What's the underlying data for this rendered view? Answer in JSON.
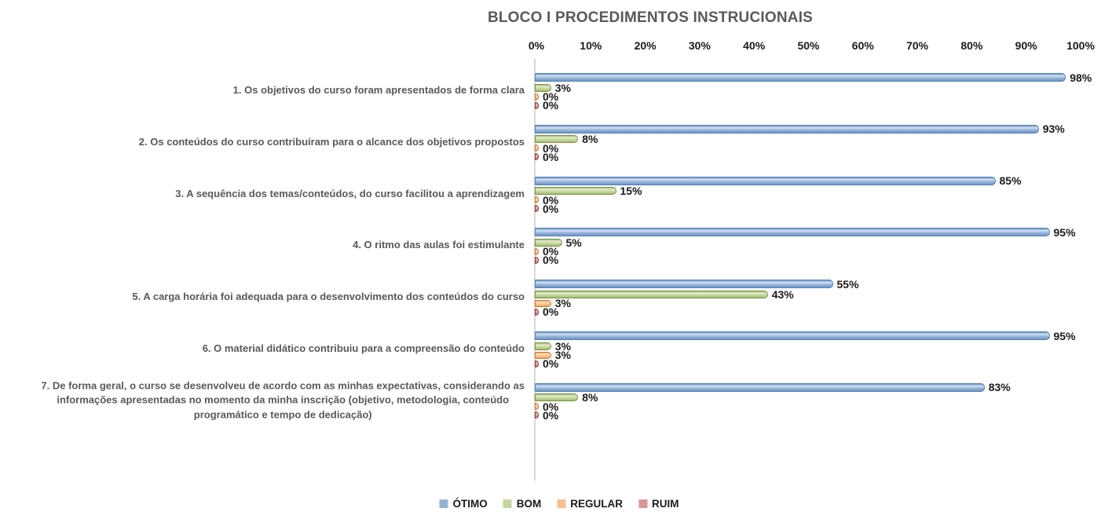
{
  "title": "BLOCO I PROCEDIMENTOS INSTRUCIONAIS",
  "colors": {
    "title_text": "#595959",
    "category_text": "#595959",
    "data_label_text": "#1a1a1a",
    "tick_text": "#1a1a1a",
    "axis_line": "#d9d9d9"
  },
  "chart_data": {
    "type": "bar",
    "orientation": "horizontal",
    "grid": false,
    "legend_position": "bottom",
    "data_label_format": "{value}%",
    "x_axis": {
      "min": 0,
      "max": 100,
      "ticks": [
        "0%",
        "10%",
        "20%",
        "30%",
        "40%",
        "50%",
        "60%",
        "70%",
        "80%",
        "90%",
        "100%"
      ]
    },
    "categories": [
      "1. Os objetivos do curso foram apresentados de forma clara",
      "2. Os conteúdos do curso contribuíram para o alcance dos objetivos propostos",
      "3. A sequência dos temas/conteúdos, do curso facilitou a aprendizagem",
      "4. O ritmo das aulas foi estimulante",
      "5. A carga horária foi adequada para o desenvolvimento dos conteúdos do curso",
      "6. O material didático contribuiu para a compreensão do conteúdo",
      "7. De forma geral, o curso se desenvolveu de acordo com as minhas expectativas, considerando as\ninformações apresentadas no momento da minha inscrição (objetivo, metodologia, conteúdo\nprogramático e tempo de dedicação)"
    ],
    "series": [
      {
        "name": "ÓTIMO",
        "key": "otimo",
        "values": [
          98,
          93,
          85,
          95,
          55,
          95,
          83
        ],
        "fill": "#95B3D7",
        "fill_light": "#D2E1F2",
        "fill_dark": "#7295C5",
        "border": "#4F81BD"
      },
      {
        "name": "BOM",
        "key": "bom",
        "values": [
          3,
          8,
          15,
          5,
          43,
          3,
          8
        ],
        "fill": "#C3D69B",
        "fill_light": "#E3ECCF",
        "fill_dark": "#A8BE77",
        "border": "#77933C"
      },
      {
        "name": "REGULAR",
        "key": "regular",
        "values": [
          0,
          0,
          0,
          0,
          3,
          3,
          0
        ],
        "fill": "#FAC090",
        "fill_light": "#FDDFC2",
        "fill_dark": "#EFA963",
        "border": "#D4772F"
      },
      {
        "name": "RUIM",
        "key": "ruim",
        "values": [
          0,
          0,
          0,
          0,
          0,
          0,
          0
        ],
        "fill": "#D99694",
        "fill_light": "#EBC2C1",
        "fill_dark": "#C27572",
        "border": "#943634"
      }
    ]
  }
}
